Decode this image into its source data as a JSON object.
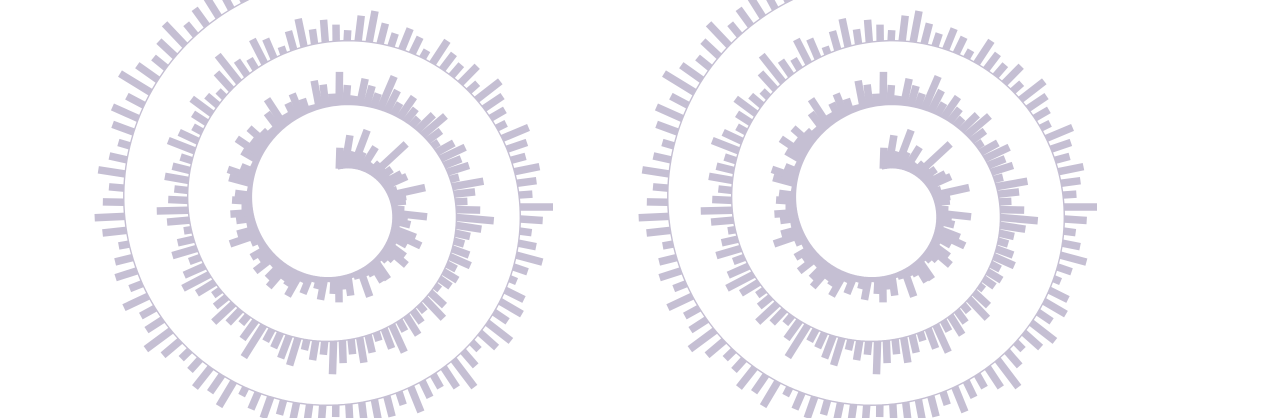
{
  "colors": {
    "bar": "#c5bfd3",
    "axis": "#c5bfd3",
    "background": "#ffffff"
  },
  "chart_data": [
    {
      "type": "bar",
      "layout": "spiral",
      "turns": 3,
      "direction": "clockwise",
      "start_angle": "top",
      "grid": false,
      "legend": "none",
      "title": "",
      "xlabel": "",
      "ylabel": "",
      "ylim": [
        0,
        1
      ],
      "values": [
        0.28,
        0.16,
        0.44,
        0.18,
        0.22,
        0.54,
        0.24,
        0.12,
        0.36,
        0.1,
        0.14,
        0.2,
        0.62,
        0.18,
        0.24,
        0.16,
        0.3,
        0.34,
        0.12,
        0.14,
        0.5,
        0.22,
        0.2,
        0.08,
        0.16,
        0.46,
        0.2,
        0.24,
        0.1,
        0.34,
        0.44,
        0.26,
        0.12,
        0.3,
        0.38,
        0.2,
        0.14,
        0.08,
        0.32,
        0.3,
        0.16,
        0.12,
        0.38,
        0.1,
        0.06,
        0.28,
        0.18,
        0.34,
        0.22,
        0.06,
        0.3,
        0.16,
        0.08,
        0.26,
        0.12,
        0.36,
        0.24,
        0.2,
        0.38,
        0.3,
        0.14,
        0.34,
        0.2,
        0.26,
        0.1,
        0.16,
        0.42,
        0.28,
        0.12,
        0.24,
        0.3,
        0.14,
        0.26,
        0.22,
        0.06,
        0.32,
        0.36,
        0.2,
        0.08,
        0.26,
        0.4,
        0.22,
        0.34,
        0.18,
        0.12,
        0.3,
        0.44,
        0.14,
        0.24,
        0.32,
        0.2,
        0.08,
        0.38,
        0.3,
        0.16,
        0.44,
        0.26,
        0.12,
        0.36,
        0.28,
        0.2,
        0.48,
        0.32,
        0.18,
        0.34,
        0.22,
        0.14,
        0.3,
        0.4,
        0.22,
        0.1,
        0.26,
        0.36,
        0.24,
        0.3,
        0.12,
        0.42,
        0.28,
        0.16,
        0.32,
        0.5,
        0.34,
        0.2,
        0.14,
        0.24,
        0.3,
        0.14,
        0.22,
        0.18,
        0.08,
        0.26,
        0.36,
        0.12,
        0.2,
        0.3,
        0.16,
        0.4,
        0.28,
        0.12,
        0.24,
        0.34,
        0.2,
        0.3,
        0.44,
        0.18,
        0.26,
        0.14,
        0.38,
        0.32,
        0.22,
        0.18,
        0.5,
        0.3,
        0.14,
        0.24,
        0.36,
        0.2,
        0.12,
        0.28,
        0.4,
        0.3,
        0.16,
        0.34,
        0.22,
        0.1,
        0.3,
        0.42,
        0.26,
        0.18,
        0.32,
        0.24,
        0.16,
        0.38,
        0.28,
        0.14,
        0.22,
        0.34,
        0.2,
        0.12,
        0.3,
        0.46,
        0.24,
        0.16,
        0.36,
        0.28,
        0.1,
        0.26,
        0.38,
        0.2,
        0.3,
        0.22,
        0.14,
        0.34,
        0.42,
        0.28,
        0.18,
        0.3,
        0.24,
        0.12,
        0.36,
        0.26,
        0.2,
        0.32,
        0.16,
        0.4,
        0.3,
        0.22,
        0.14,
        0.38,
        0.28,
        0.2,
        0.34,
        0.26,
        0.18,
        0.44,
        0.3,
        0.16,
        0.24,
        0.36,
        0.2,
        0.1,
        0.28,
        0.34,
        0.22,
        0.4,
        0.3,
        0.14,
        0.26,
        0.46,
        0.32,
        0.2,
        0.24,
        0.36,
        0.18,
        0.28,
        0.4,
        0.22,
        0.3,
        0.16,
        0.34,
        0.26,
        0.44,
        0.2,
        0.3,
        0.24,
        0.12,
        0.38,
        0.28,
        0.34,
        0.2,
        0.16,
        0.3,
        0.42,
        0.26,
        0.22,
        0.36,
        0.18,
        0.3,
        0.24,
        0.14,
        0.32,
        0.4,
        0.28,
        0.2,
        0.36,
        0.24,
        0.16,
        0.3,
        0.38,
        0.26,
        0.48,
        0.34,
        0.22,
        0.3,
        0.4,
        0.2,
        0.28,
        0.36,
        0.24,
        0.18,
        0.32,
        0.44,
        0.3,
        0.22,
        0.12,
        0.08
      ]
    },
    {
      "type": "bar",
      "layout": "spiral",
      "turns": 3,
      "direction": "clockwise",
      "start_angle": "top",
      "grid": false,
      "legend": "none",
      "title": "",
      "xlabel": "",
      "ylabel": "",
      "ylim": [
        0,
        1
      ],
      "values": [
        0.28,
        0.16,
        0.44,
        0.18,
        0.22,
        0.54,
        0.24,
        0.12,
        0.36,
        0.1,
        0.14,
        0.2,
        0.62,
        0.18,
        0.24,
        0.16,
        0.3,
        0.34,
        0.12,
        0.14,
        0.5,
        0.22,
        0.2,
        0.08,
        0.16,
        0.46,
        0.2,
        0.24,
        0.1,
        0.34,
        0.44,
        0.26,
        0.12,
        0.3,
        0.38,
        0.2,
        0.14,
        0.08,
        0.32,
        0.3,
        0.16,
        0.12,
        0.38,
        0.1,
        0.06,
        0.28,
        0.18,
        0.34,
        0.22,
        0.06,
        0.3,
        0.16,
        0.08,
        0.26,
        0.12,
        0.36,
        0.24,
        0.2,
        0.38,
        0.3,
        0.14,
        0.34,
        0.2,
        0.26,
        0.1,
        0.16,
        0.42,
        0.28,
        0.12,
        0.24,
        0.3,
        0.14,
        0.26,
        0.22,
        0.06,
        0.32,
        0.36,
        0.2,
        0.08,
        0.26,
        0.4,
        0.22,
        0.34,
        0.18,
        0.12,
        0.3,
        0.44,
        0.14,
        0.24,
        0.32,
        0.2,
        0.08,
        0.38,
        0.3,
        0.16,
        0.44,
        0.26,
        0.12,
        0.36,
        0.28,
        0.2,
        0.48,
        0.32,
        0.18,
        0.34,
        0.22,
        0.14,
        0.3,
        0.4,
        0.22,
        0.1,
        0.26,
        0.36,
        0.24,
        0.3,
        0.12,
        0.42,
        0.28,
        0.16,
        0.32,
        0.5,
        0.34,
        0.2,
        0.14,
        0.24,
        0.3,
        0.14,
        0.22,
        0.18,
        0.08,
        0.26,
        0.36,
        0.12,
        0.2,
        0.3,
        0.16,
        0.4,
        0.28,
        0.12,
        0.24,
        0.34,
        0.2,
        0.3,
        0.44,
        0.18,
        0.26,
        0.14,
        0.38,
        0.32,
        0.22,
        0.18,
        0.5,
        0.3,
        0.14,
        0.24,
        0.36,
        0.2,
        0.12,
        0.28,
        0.4,
        0.3,
        0.16,
        0.34,
        0.22,
        0.1,
        0.3,
        0.42,
        0.26,
        0.18,
        0.32,
        0.24,
        0.16,
        0.38,
        0.28,
        0.14,
        0.22,
        0.34,
        0.2,
        0.12,
        0.3,
        0.46,
        0.24,
        0.16,
        0.36,
        0.28,
        0.1,
        0.26,
        0.38,
        0.2,
        0.3,
        0.22,
        0.14,
        0.34,
        0.42,
        0.28,
        0.18,
        0.3,
        0.24,
        0.12,
        0.36,
        0.26,
        0.2,
        0.32,
        0.16,
        0.4,
        0.3,
        0.22,
        0.14,
        0.38,
        0.28,
        0.2,
        0.34,
        0.26,
        0.18,
        0.44,
        0.3,
        0.16,
        0.24,
        0.36,
        0.2,
        0.1,
        0.28,
        0.34,
        0.22,
        0.4,
        0.3,
        0.14,
        0.26,
        0.46,
        0.32,
        0.2,
        0.24,
        0.36,
        0.18,
        0.28,
        0.4,
        0.22,
        0.3,
        0.16,
        0.34,
        0.26,
        0.44,
        0.2,
        0.3,
        0.24,
        0.12,
        0.38,
        0.28,
        0.34,
        0.2,
        0.16,
        0.3,
        0.42,
        0.26,
        0.22,
        0.36,
        0.18,
        0.3,
        0.24,
        0.14,
        0.32,
        0.4,
        0.28,
        0.2,
        0.36,
        0.24,
        0.16,
        0.3,
        0.38,
        0.26,
        0.48,
        0.34,
        0.22,
        0.3,
        0.4,
        0.2,
        0.28,
        0.36,
        0.24,
        0.18,
        0.32,
        0.44,
        0.3,
        0.22,
        0.12,
        0.08
      ]
    }
  ]
}
